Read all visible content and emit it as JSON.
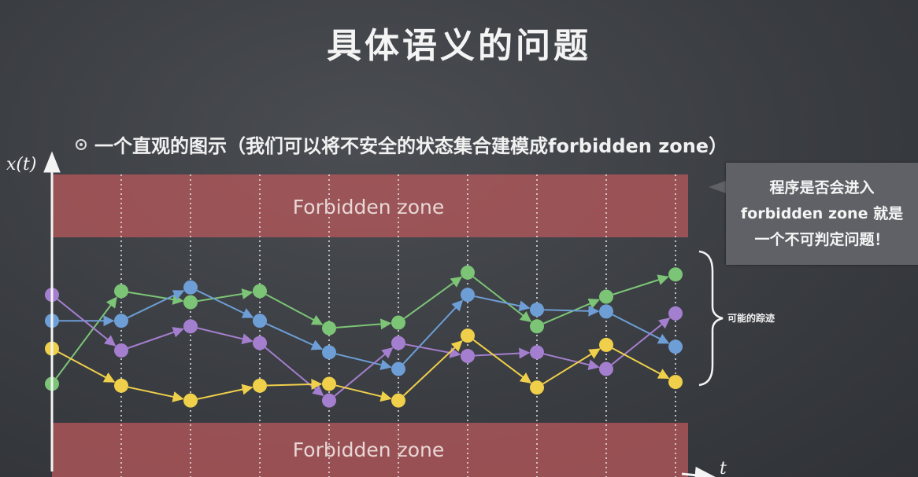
{
  "slide": {
    "title": "具体语义的问题",
    "bullet": "一个直观的图示（我们可以将不安全的状态集合建模成forbidden zone）",
    "bullet_icon": "eye-icon"
  },
  "callout": {
    "lines": [
      "程序是否会进入",
      "forbidden zone 就是",
      "一个不可判定问题！"
    ]
  },
  "brace_label": "可能的踪迹",
  "chart_data": {
    "type": "line",
    "xlabel": "t",
    "ylabel": "x(t)",
    "zones": [
      {
        "label": "Forbidden zone",
        "position": "top"
      },
      {
        "label": "Forbidden zone",
        "position": "bottom"
      }
    ],
    "x": [
      0,
      1,
      2,
      3,
      4,
      5,
      6,
      7,
      8,
      9
    ],
    "series": [
      {
        "color": "#7cc576",
        "values": [
          2.1,
          7.1,
          6.5,
          7.1,
          5.1,
          5.4,
          8.1,
          5.2,
          6.8,
          8.0
        ]
      },
      {
        "color": "#6d9ed6",
        "values": [
          5.5,
          5.5,
          7.3,
          5.5,
          3.8,
          2.9,
          6.9,
          6.1,
          6.0,
          4.1
        ]
      },
      {
        "color": "#a57fcf",
        "values": [
          6.9,
          3.9,
          5.2,
          4.3,
          1.2,
          4.3,
          3.6,
          3.8,
          2.9,
          5.9
        ]
      },
      {
        "color": "#f0d04a",
        "values": [
          4.0,
          2.0,
          1.2,
          2.0,
          2.1,
          1.2,
          4.7,
          1.9,
          4.2,
          2.2
        ]
      }
    ],
    "ylim": [
      0,
      10
    ],
    "grid": "vertical-dotted"
  },
  "colors": {
    "background": "#3a3d42",
    "zone_fill": "#b4575a",
    "text": "#f4f4f4",
    "callout_bg": "#5f6166"
  }
}
